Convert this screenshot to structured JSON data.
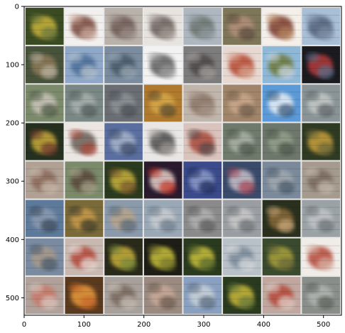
{
  "figure": {
    "description_tags": [
      "image-grid",
      "generated-samples"
    ],
    "grid": {
      "rows": 8,
      "cols": 8,
      "separator_color": "#e8e8e8"
    },
    "axes": {
      "x": {
        "ticks": [
          "0",
          "100",
          "200",
          "300",
          "400",
          "500"
        ],
        "range": [
          0,
          530
        ]
      },
      "y": {
        "ticks": [
          "0",
          "100",
          "200",
          "300",
          "400",
          "500"
        ],
        "range": [
          0,
          530
        ]
      }
    },
    "tiles": [
      {
        "c": [
          "#3a4a22",
          "#c8b23a",
          "#6e7a3e"
        ]
      },
      {
        "c": [
          "#f2f0ee",
          "#7a4a3e",
          "#c9a79a"
        ]
      },
      {
        "c": [
          "#b9b2ab",
          "#6e5a54",
          "#9b8c86"
        ]
      },
      {
        "c": [
          "#e7e3df",
          "#6a605c",
          "#a39992"
        ]
      },
      {
        "c": [
          "#aeb7c0",
          "#6c7470",
          "#8e9a9e"
        ]
      },
      {
        "c": [
          "#7e7658",
          "#b28f7a",
          "#5a4c3e"
        ]
      },
      {
        "c": [
          "#f4efe9",
          "#7a3b2c",
          "#b5835e"
        ]
      },
      {
        "c": [
          "#a8bfd6",
          "#52627a",
          "#7f8fa6"
        ]
      },
      {
        "c": [
          "#46523a",
          "#8d7a5a",
          "#bcb2a0"
        ]
      },
      {
        "c": [
          "#8fa8c8",
          "#4e6f9a",
          "#b7c3cf"
        ]
      },
      {
        "c": [
          "#7a8c9e",
          "#4a5a6a",
          "#9aa7b4"
        ]
      },
      {
        "c": [
          "#f2f2f2",
          "#5e5e5e",
          "#9c9c9c"
        ]
      },
      {
        "c": [
          "#7d7c7c",
          "#4e4a48",
          "#a3a09c"
        ]
      },
      {
        "c": [
          "#e7d8d2",
          "#b54a32",
          "#d7a18b"
        ]
      },
      {
        "c": [
          "#8fb8d7",
          "#6e7a3e",
          "#c9d7e2"
        ]
      },
      {
        "c": [
          "#1a1a1f",
          "#b53a3a",
          "#5a6e8a"
        ]
      },
      {
        "c": [
          "#7b8a6a",
          "#c8c3b8",
          "#4e5a44"
        ]
      },
      {
        "c": [
          "#7a8885",
          "#a7b0ad",
          "#4f5a58"
        ]
      },
      {
        "c": [
          "#6a6e72",
          "#8d9296",
          "#4a4e52"
        ]
      },
      {
        "c": [
          "#b07a2e",
          "#d7a84a",
          "#5a4a2e"
        ]
      },
      {
        "c": [
          "#c1b6ac",
          "#8b7468",
          "#a49386"
        ]
      },
      {
        "c": [
          "#a1856a",
          "#c9a88a",
          "#6e5a48"
        ]
      },
      {
        "c": [
          "#5b9ad6",
          "#e7eef5",
          "#3a5a7a"
        ]
      },
      {
        "c": [
          "#8a9496",
          "#c3c8c6",
          "#5c6466"
        ]
      },
      {
        "c": [
          "#26301e",
          "#c8a83a",
          "#6e3a2e"
        ]
      },
      {
        "c": [
          "#ebe6e2",
          "#6a5e56",
          "#a8483a"
        ]
      },
      {
        "c": [
          "#5a6fa0",
          "#a7b3c9",
          "#3a4868"
        ]
      },
      {
        "c": [
          "#e9e7e5",
          "#4e4e4e",
          "#9e9a96"
        ]
      },
      {
        "c": [
          "#d9c3bc",
          "#a8483a",
          "#5a4a4a"
        ]
      },
      {
        "c": [
          "#6f7a6c",
          "#a9b2a4",
          "#4a5448"
        ]
      },
      {
        "c": [
          "#6d776b",
          "#93a08a",
          "#4a5446"
        ]
      },
      {
        "c": [
          "#2f3a22",
          "#c8a03a",
          "#6e6a3a"
        ]
      },
      {
        "c": [
          "#b0a194",
          "#8b6a5a",
          "#cbbcae"
        ]
      },
      {
        "c": [
          "#7a8a6a",
          "#5a4a3a",
          "#a7a38a"
        ]
      },
      {
        "c": [
          "#2a3a1e",
          "#c8b03a",
          "#7a5a2e"
        ]
      },
      {
        "c": [
          "#2a1a2e",
          "#e8d0c8",
          "#c83a2e"
        ]
      },
      {
        "c": [
          "#3a4a8a",
          "#8a9ac8",
          "#1e2a5a"
        ]
      },
      {
        "c": [
          "#3a4a6a",
          "#c8c0c8",
          "#a84a5a"
        ]
      },
      {
        "c": [
          "#7a8a9a",
          "#a0a8b0",
          "#4a5a6a"
        ]
      },
      {
        "c": [
          "#a49a8e",
          "#7a6a5e",
          "#c8bcb0"
        ]
      },
      {
        "c": [
          "#5e7a9a",
          "#8a9ab0",
          "#3a4a5a"
        ]
      },
      {
        "c": [
          "#7a6a3a",
          "#c89a4a",
          "#3a3a2a"
        ]
      },
      {
        "c": [
          "#8a9aaa",
          "#b8a48a",
          "#5a6a7a"
        ]
      },
      {
        "c": [
          "#9aa8b6",
          "#c8ccd0",
          "#6a7a8a"
        ]
      },
      {
        "c": [
          "#8a8a8a",
          "#b0b0b0",
          "#5a5a5a"
        ]
      },
      {
        "c": [
          "#9a9ea2",
          "#c8c8c8",
          "#6a6e72"
        ]
      },
      {
        "c": [
          "#2a301e",
          "#8a6a3a",
          "#c8a87a"
        ]
      },
      {
        "c": [
          "#9aa2a6",
          "#c0c4c6",
          "#6a7276"
        ]
      },
      {
        "c": [
          "#7a8aa0",
          "#a89a8a",
          "#4a5a6a"
        ]
      },
      {
        "c": [
          "#c8b8b0",
          "#b54a3a",
          "#e8ded8"
        ]
      },
      {
        "c": [
          "#2a2a1a",
          "#c8b03a",
          "#7a8a3a"
        ]
      },
      {
        "c": [
          "#1e1e16",
          "#c8c03a",
          "#7a7a2e"
        ]
      },
      {
        "c": [
          "#2a3a1e",
          "#c8c03a",
          "#5a6a2e"
        ]
      },
      {
        "c": [
          "#b8c0c8",
          "#7a8a9a",
          "#d8dcdf"
        ]
      },
      {
        "c": [
          "#3a4a2e",
          "#a8a03a",
          "#6a6a3a"
        ]
      },
      {
        "c": [
          "#f0ece8",
          "#b54a3a",
          "#d8b0a0"
        ]
      },
      {
        "c": [
          "#b0a29a",
          "#c87a6a",
          "#d8c8c0"
        ]
      },
      {
        "c": [
          "#5a3a1e",
          "#e89a3a",
          "#c86a2e"
        ]
      },
      {
        "c": [
          "#a8a09a",
          "#7a6a5e",
          "#c8c0b8"
        ]
      },
      {
        "c": [
          "#9a8a80",
          "#c8a898",
          "#6a5a50"
        ]
      },
      {
        "c": [
          "#8aa0c0",
          "#c8d0d8",
          "#5a6a80"
        ]
      },
      {
        "c": [
          "#2a3a1e",
          "#c8b83a",
          "#6a7a3a"
        ]
      },
      {
        "c": [
          "#c0a8a0",
          "#b54a3a",
          "#e0d0c8"
        ]
      },
      {
        "c": [
          "#8a8e8a",
          "#b0b4b0",
          "#5a5e5a"
        ]
      }
    ]
  }
}
